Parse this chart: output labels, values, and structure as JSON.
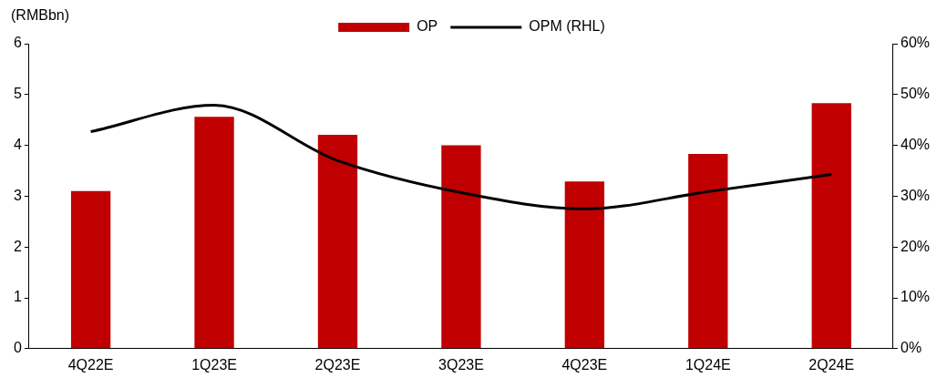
{
  "chart_data": {
    "type": "bar",
    "ylabel": "(RMBbn)",
    "categories": [
      "4Q22E",
      "1Q23E",
      "2Q23E",
      "3Q23E",
      "4Q23E",
      "1Q24E",
      "2Q24E"
    ],
    "series": [
      {
        "name": "OP",
        "color": "#c00000",
        "values": [
          3.1,
          4.56,
          4.21,
          4.0,
          3.29,
          3.83,
          4.83
        ]
      },
      {
        "name": "OPM (RHL)",
        "type": "line",
        "axis": "y2",
        "color": "#000000",
        "marker": "none",
        "values": [
          42.7,
          47.9,
          37.0,
          30.7,
          27.5,
          30.9,
          34.3
        ]
      }
    ],
    "ylim": [
      0,
      6
    ],
    "yticks": [
      0,
      1,
      2,
      3,
      4,
      5,
      6
    ],
    "y2lim": [
      0,
      60
    ],
    "y2ticks": [
      {
        "value": 0,
        "label": "0%"
      },
      {
        "value": 10,
        "label": "10%"
      },
      {
        "value": 20,
        "label": "20%"
      },
      {
        "value": 30,
        "label": "30%"
      },
      {
        "value": 40,
        "label": "40%"
      },
      {
        "value": 50,
        "label": "50%"
      },
      {
        "value": 60,
        "label": "60%"
      }
    ],
    "grid": false,
    "legend": "top"
  }
}
